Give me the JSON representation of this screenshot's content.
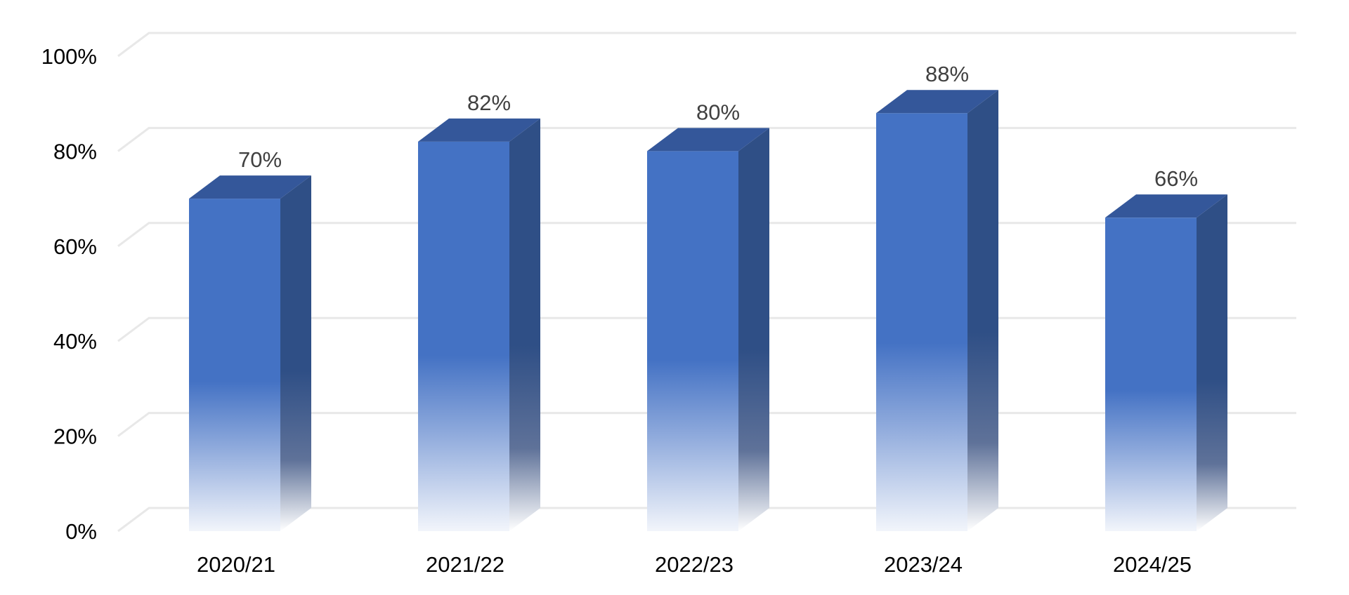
{
  "chart_data": {
    "type": "bar",
    "style": "3d-column",
    "categories": [
      "2020/21",
      "2021/22",
      "2022/23",
      "2023/24",
      "2024/25"
    ],
    "values": [
      70,
      82,
      80,
      88,
      66
    ],
    "data_labels": [
      "70%",
      "82%",
      "80%",
      "88%",
      "66%"
    ],
    "y_ticks": [
      0,
      20,
      40,
      60,
      80,
      100
    ],
    "y_tick_labels": [
      "0%",
      "20%",
      "40%",
      "60%",
      "80%",
      "100%"
    ],
    "ylim": [
      0,
      100
    ],
    "title": "",
    "xlabel": "",
    "ylabel": "",
    "grid": true,
    "legend": false,
    "colors": {
      "front": "#4472C4",
      "side": "#2F4F86",
      "top": "#34579A",
      "grid": "#E8E8E8",
      "data_label": "#404040",
      "axis_label": "#000000"
    }
  }
}
